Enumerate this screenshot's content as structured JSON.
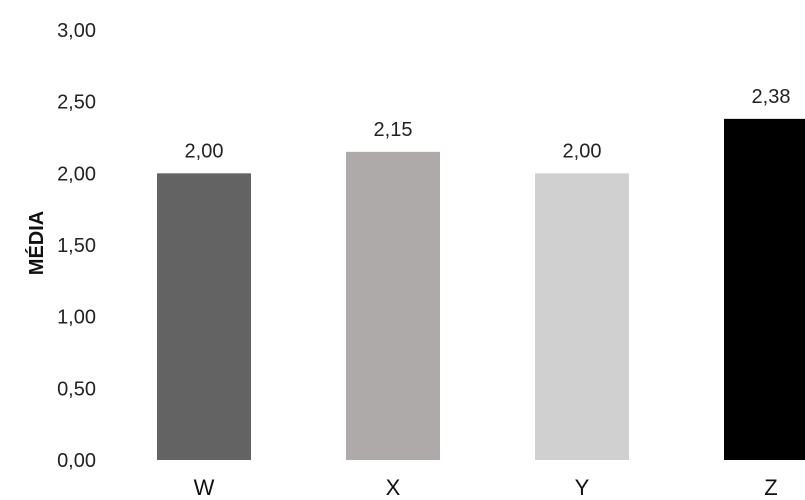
{
  "chart_data": {
    "type": "bar",
    "categories": [
      "W",
      "X",
      "Y",
      "Z"
    ],
    "values": [
      2.0,
      2.15,
      2.0,
      2.38
    ],
    "value_labels": [
      "2,00",
      "2,15",
      "2,00",
      "2,38"
    ],
    "bar_colors": [
      "#636363",
      "#aeaaa9",
      "#d1d0d0",
      "#000000"
    ],
    "ylabel": "MÉDIA",
    "xlabel": "",
    "ylim": [
      0,
      3
    ],
    "yticks": [
      0,
      0.5,
      1,
      1.5,
      2,
      2.5,
      3
    ],
    "ytick_labels": [
      "0,00",
      "0,50",
      "1,00",
      "1,50",
      "2,00",
      "2,50",
      "3,00"
    ],
    "grid": false,
    "legend": "none"
  }
}
